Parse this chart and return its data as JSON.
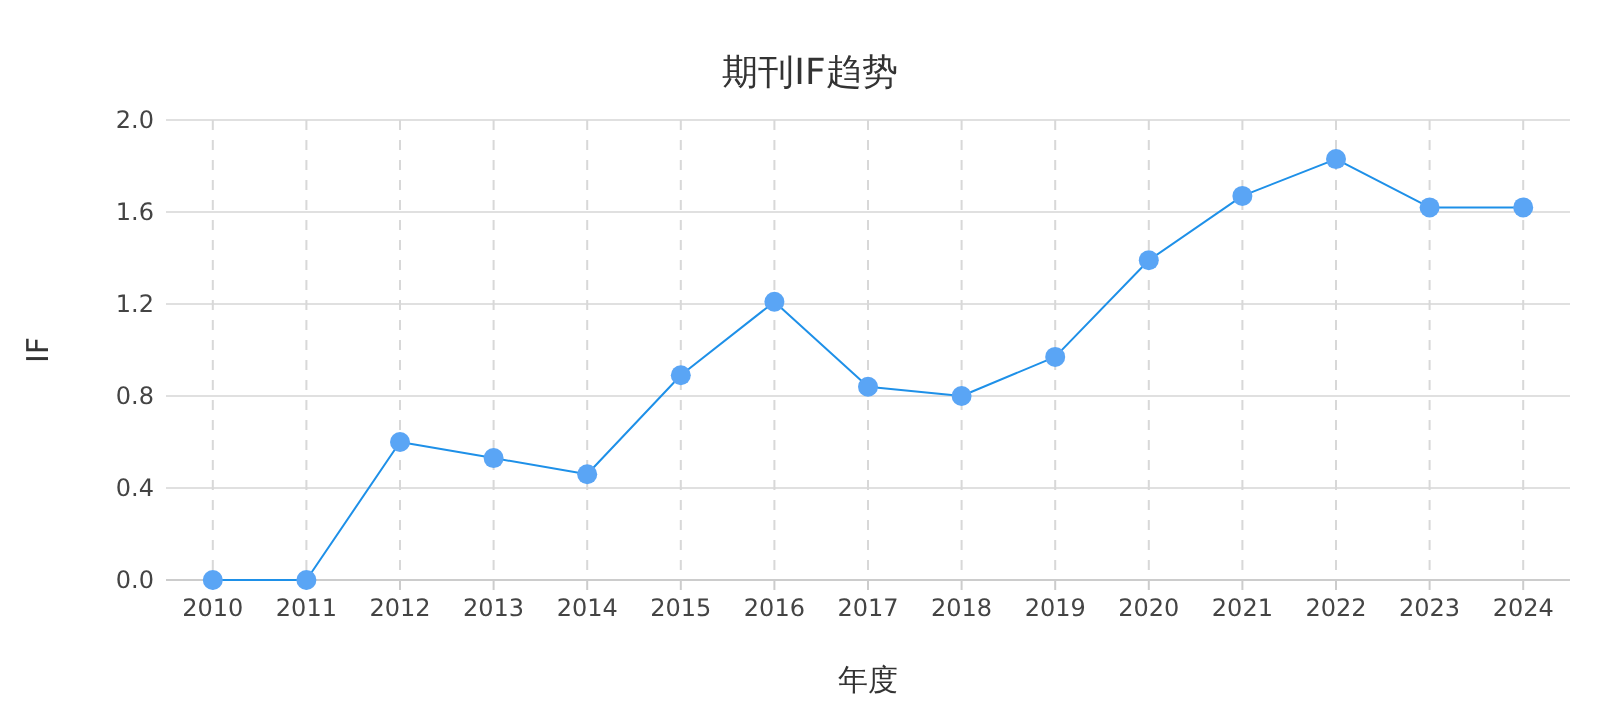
{
  "chart_data": {
    "type": "line",
    "title": "期刊IF趋势",
    "xlabel": "年度",
    "ylabel": "IF",
    "categories": [
      "2010",
      "2011",
      "2012",
      "2013",
      "2014",
      "2015",
      "2016",
      "2017",
      "2018",
      "2019",
      "2020",
      "2021",
      "2022",
      "2023",
      "2024"
    ],
    "series": [
      {
        "color": "#5aa5f5",
        "values": [
          0,
          0,
          0.6,
          0.53,
          0.46,
          0.89,
          1.21,
          0.84,
          0.8,
          0.97,
          1.39,
          1.67,
          1.83,
          1.62,
          1.62
        ]
      }
    ],
    "ylim": [
      0,
      2.0
    ],
    "yticks": [
      {
        "value": 0,
        "label": "0.0"
      },
      {
        "value": 0.4,
        "label": "0.4"
      },
      {
        "value": 0.8,
        "label": "0.8"
      },
      {
        "value": 1.2,
        "label": "1.2"
      },
      {
        "value": 1.6,
        "label": "1.6"
      },
      {
        "value": 2.0,
        "label": "2.0"
      }
    ],
    "grid": true,
    "marker": "circle",
    "line_style": "solid"
  }
}
